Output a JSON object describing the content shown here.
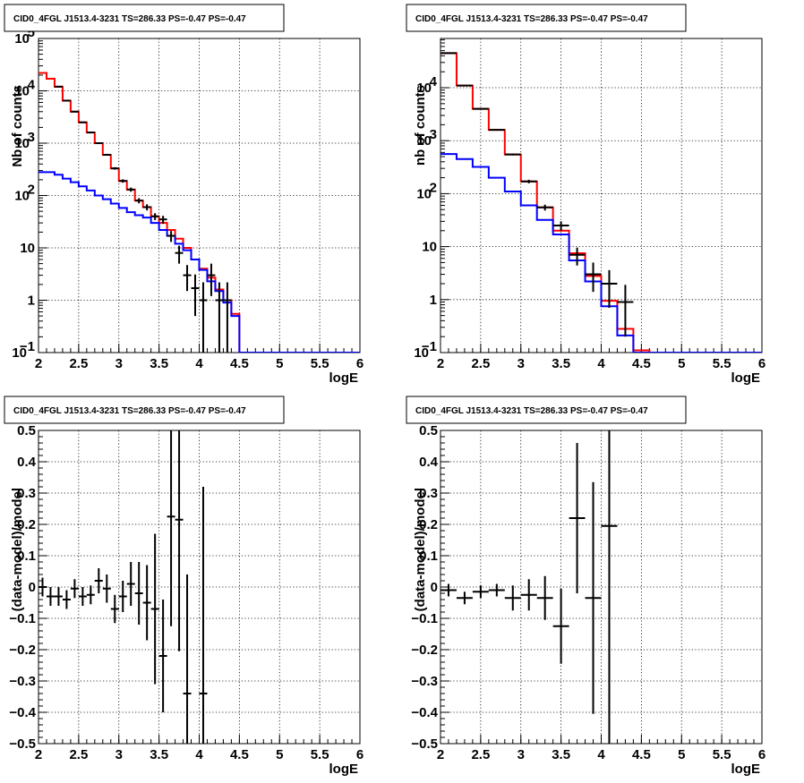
{
  "chart_data": [
    {
      "type": "line",
      "panel": "top-left",
      "title": "CID0_4FGL J1513.4-3231 TS=286.33 PS=-0.47 PS=-0.47",
      "xlabel": "logE",
      "ylabel": "Nb of counts",
      "xlim": [
        2,
        6
      ],
      "ylim": [
        0.1,
        100000
      ],
      "yscale": "log",
      "grid": true,
      "x_ticks": [
        "2",
        "2.5",
        "3",
        "3.5",
        "4",
        "4.5",
        "5",
        "5.5",
        "6"
      ],
      "y_ticks": [
        {
          "base": "10",
          "exp": "−1"
        },
        {
          "base": "1",
          "exp": ""
        },
        {
          "base": "10",
          "exp": ""
        },
        {
          "base": "10",
          "exp": "2"
        },
        {
          "base": "10",
          "exp": "3"
        },
        {
          "base": "10",
          "exp": "4"
        },
        {
          "base": "10",
          "exp": "5"
        }
      ],
      "bin_edges": [
        2.0,
        2.1,
        2.2,
        2.3,
        2.4,
        2.5,
        2.6,
        2.7,
        2.8,
        2.9,
        3.0,
        3.1,
        3.2,
        3.3,
        3.4,
        3.5,
        3.6,
        3.7,
        3.8,
        3.9,
        4.0,
        4.1,
        4.2,
        4.3,
        4.4,
        4.5,
        4.6,
        4.7,
        4.8,
        4.9,
        5.0,
        5.1,
        5.2,
        5.3,
        5.4,
        5.5,
        5.6,
        5.7,
        5.8,
        5.9,
        6.0
      ],
      "series": [
        {
          "name": "",
          "color": "#ff0000",
          "style": "step",
          "values": [
            22000,
            17000,
            12000,
            6500,
            4000,
            2500,
            1600,
            1000,
            600,
            330,
            190,
            130,
            80,
            60,
            40,
            30,
            22,
            15,
            10,
            6,
            4,
            2.7,
            1.6,
            1,
            0.55,
            0.1,
            0.1,
            0.1,
            0.1,
            0.1,
            0.1,
            0.1,
            0.1,
            0.1,
            0.1,
            0.1,
            0.1,
            0.1,
            0.1,
            0.1
          ]
        },
        {
          "name": "",
          "color": "#0000ff",
          "style": "step",
          "values": [
            280,
            280,
            250,
            210,
            180,
            150,
            125,
            100,
            85,
            70,
            58,
            48,
            42,
            38,
            30,
            22,
            17,
            12,
            9,
            6,
            3.8,
            2.3,
            1.5,
            0.9,
            0.5,
            0.1,
            0.1,
            0.1,
            0.1,
            0.1,
            0.1,
            0.1,
            0.1,
            0.1,
            0.1,
            0.1,
            0.1,
            0.1,
            0.1,
            0.1
          ]
        }
      ],
      "points": {
        "x": [
          2.25,
          2.35,
          2.45,
          2.55,
          2.65,
          2.75,
          2.85,
          2.95,
          3.05,
          3.15,
          3.25,
          3.35,
          3.45,
          3.55,
          3.65,
          3.75,
          3.85,
          3.95,
          4.05,
          4.15,
          4.25,
          4.35
        ],
        "y": [
          12000,
          6500,
          4000,
          2500,
          1600,
          1000,
          600,
          330,
          190,
          130,
          80,
          60,
          40,
          35,
          17,
          8,
          3,
          1.7,
          1,
          3,
          1,
          1
        ],
        "xerr": 0.05,
        "yerr_lo": [
          100,
          80,
          60,
          50,
          40,
          30,
          25,
          18,
          14,
          12,
          9,
          8,
          6,
          6,
          4,
          3,
          1.5,
          1.2,
          0.9,
          1.8,
          0.9,
          0.9
        ],
        "yerr_hi": [
          100,
          80,
          60,
          50,
          40,
          30,
          25,
          18,
          14,
          12,
          9,
          8,
          6,
          6,
          4,
          3,
          1.7,
          1.4,
          1.2,
          2.0,
          1.2,
          1.2
        ]
      }
    },
    {
      "type": "line",
      "panel": "top-right",
      "title": "CID0_4FGL J1513.4-3231 TS=286.33 PS=-0.47 PS=-0.47",
      "xlabel": "logE",
      "ylabel": "nb of counts",
      "xlim": [
        2,
        6
      ],
      "ylim": [
        0.1,
        85000
      ],
      "yscale": "log",
      "grid": true,
      "x_ticks": [
        "2",
        "2.5",
        "3",
        "3.5",
        "4",
        "4.5",
        "5",
        "5.5",
        "6"
      ],
      "y_ticks": [
        {
          "base": "10",
          "exp": "−1"
        },
        {
          "base": "1",
          "exp": ""
        },
        {
          "base": "10",
          "exp": ""
        },
        {
          "base": "10",
          "exp": "2"
        },
        {
          "base": "10",
          "exp": "3"
        },
        {
          "base": "10",
          "exp": "4"
        }
      ],
      "bin_edges": [
        2.0,
        2.2,
        2.4,
        2.6,
        2.8,
        3.0,
        3.2,
        3.4,
        3.6,
        3.8,
        4.0,
        4.2,
        4.4,
        4.6,
        4.8,
        5.0,
        5.2,
        5.4,
        5.6,
        5.8,
        6.0
      ],
      "series": [
        {
          "name": "",
          "color": "#ff0000",
          "style": "step",
          "values": [
            45000,
            11000,
            4000,
            1600,
            550,
            170,
            55,
            20,
            7.5,
            2.8,
            0.95,
            0.28,
            0.11,
            0.1,
            0.1,
            0.1,
            0.1,
            0.1,
            0.1,
            0.1
          ]
        },
        {
          "name": "",
          "color": "#0000ff",
          "style": "step",
          "values": [
            560,
            450,
            320,
            200,
            110,
            60,
            32,
            17,
            5.5,
            2.2,
            0.75,
            0.21,
            0.1,
            0.1,
            0.1,
            0.1,
            0.1,
            0.1,
            0.1,
            0.1
          ]
        }
      ],
      "points": {
        "x": [
          2.1,
          2.3,
          2.5,
          2.7,
          2.9,
          3.1,
          3.3,
          3.5,
          3.7,
          3.9,
          4.1,
          4.3
        ],
        "y": [
          45000,
          11000,
          4000,
          1600,
          550,
          170,
          55,
          25,
          7,
          3,
          2,
          0.9
        ],
        "xerr": 0.1,
        "yerr_lo": [
          220,
          100,
          60,
          40,
          23,
          13,
          7,
          5,
          2.6,
          1.6,
          1.3,
          0.7
        ],
        "yerr_hi": [
          220,
          100,
          60,
          40,
          23,
          13,
          7,
          5,
          2.6,
          2.0,
          1.6,
          1.0
        ]
      }
    },
    {
      "type": "scatter",
      "panel": "bottom-left",
      "title": "CID0_4FGL J1513.4-3231 TS=286.33 PS=-0.47 PS=-0.47",
      "xlabel": "logE",
      "ylabel": "(data-model)/model",
      "xlim": [
        2,
        6
      ],
      "ylim": [
        -0.5,
        0.5
      ],
      "grid": true,
      "x_ticks": [
        "2",
        "2.5",
        "3",
        "3.5",
        "4",
        "4.5",
        "5",
        "5.5",
        "6"
      ],
      "y_ticks": [
        "−0.5",
        "−0.4",
        "−0.3",
        "−0.2",
        "−0.1",
        "0",
        "0.1",
        "0.2",
        "0.3",
        "0.4",
        "0.5"
      ],
      "points": {
        "x": [
          2.05,
          2.15,
          2.25,
          2.35,
          2.45,
          2.55,
          2.65,
          2.75,
          2.85,
          2.95,
          3.05,
          3.15,
          3.25,
          3.35,
          3.45,
          3.55,
          3.65,
          3.75,
          3.85,
          4.05
        ],
        "y": [
          0.0,
          -0.03,
          -0.03,
          -0.04,
          -0.005,
          -0.03,
          -0.025,
          0.02,
          -0.005,
          -0.07,
          -0.03,
          0.01,
          -0.02,
          -0.05,
          -0.07,
          -0.22,
          0.225,
          0.215,
          -0.34,
          -0.34
        ],
        "xerr": 0.05,
        "yerr": [
          0.03,
          0.03,
          0.03,
          0.03,
          0.03,
          0.03,
          0.03,
          0.04,
          0.045,
          0.045,
          0.05,
          0.07,
          0.1,
          0.12,
          0.24,
          0.18,
          0.35,
          0.42,
          0.38,
          0.66
        ]
      }
    },
    {
      "type": "scatter",
      "panel": "bottom-right",
      "title": "CID0_4FGL J1513.4-3231 TS=286.33 PS=-0.47 PS=-0.47",
      "xlabel": "logE",
      "ylabel": "(data-model)/model",
      "xlim": [
        2,
        6
      ],
      "ylim": [
        -0.5,
        0.5
      ],
      "grid": true,
      "x_ticks": [
        "2",
        "2.5",
        "3",
        "3.5",
        "4",
        "4.5",
        "5",
        "5.5",
        "6"
      ],
      "y_ticks": [
        "−0.5",
        "−0.4",
        "−0.3",
        "−0.2",
        "−0.1",
        "0",
        "0.1",
        "0.2",
        "0.3",
        "0.4",
        "0.5"
      ],
      "points": {
        "x": [
          2.1,
          2.3,
          2.5,
          2.7,
          2.9,
          3.1,
          3.3,
          3.5,
          3.7,
          3.9,
          4.1
        ],
        "y": [
          -0.01,
          -0.035,
          -0.015,
          -0.01,
          -0.035,
          -0.025,
          -0.035,
          -0.125,
          0.22,
          -0.035,
          0.195
        ],
        "xerr": 0.1,
        "yerr": [
          0.02,
          0.02,
          0.02,
          0.02,
          0.04,
          0.05,
          0.07,
          0.12,
          0.24,
          0.37,
          0.75
        ]
      }
    }
  ]
}
